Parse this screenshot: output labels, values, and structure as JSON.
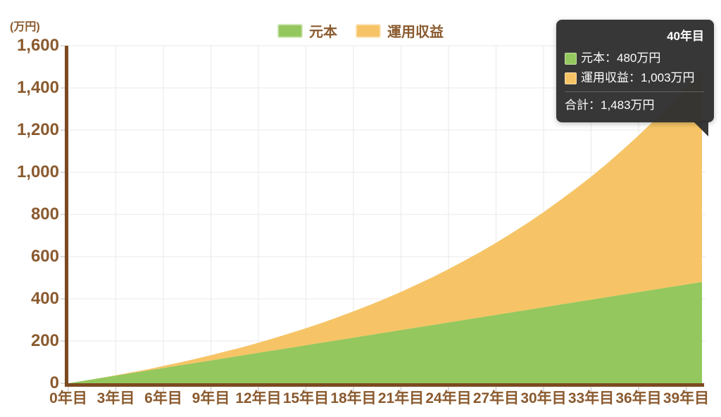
{
  "chart_data": {
    "type": "area",
    "stacked": true,
    "unit": "万円",
    "x_years": [
      0,
      1,
      2,
      3,
      4,
      5,
      6,
      7,
      8,
      9,
      10,
      11,
      12,
      13,
      14,
      15,
      16,
      17,
      18,
      19,
      20,
      21,
      22,
      23,
      24,
      25,
      26,
      27,
      28,
      29,
      30,
      31,
      32,
      33,
      34,
      35,
      36,
      37,
      38,
      39,
      40
    ],
    "series": [
      {
        "name": "元本",
        "color": "#94c75d",
        "values": [
          0,
          12,
          24,
          36,
          48,
          60,
          72,
          84,
          96,
          108,
          120,
          132,
          144,
          156,
          168,
          180,
          192,
          204,
          216,
          228,
          240,
          252,
          264,
          276,
          288,
          300,
          312,
          324,
          336,
          348,
          360,
          372,
          384,
          396,
          408,
          420,
          432,
          444,
          456,
          468,
          480
        ]
      },
      {
        "name": "運用収益",
        "color": "#f6c466",
        "values": [
          0,
          0,
          1,
          2,
          4,
          6,
          10,
          14,
          19,
          25,
          32,
          39,
          48,
          58,
          69,
          81,
          94,
          109,
          125,
          142,
          161,
          181,
          204,
          227,
          253,
          281,
          310,
          342,
          376,
          412,
          451,
          493,
          537,
          583,
          633,
          687,
          743,
          803,
          866,
          934,
          1003
        ]
      }
    ],
    "x_tick_years": [
      0,
      3,
      6,
      9,
      12,
      15,
      18,
      21,
      24,
      27,
      30,
      33,
      36,
      39
    ],
    "x_tick_labels": [
      "0年目",
      "3年目",
      "6年目",
      "9年目",
      "12年目",
      "15年目",
      "18年目",
      "21年目",
      "24年目",
      "27年目",
      "30年目",
      "33年目",
      "36年目",
      "39年目"
    ],
    "y_tick_values": [
      0,
      200,
      400,
      600,
      800,
      1000,
      1200,
      1400,
      1600
    ],
    "y_tick_labels": [
      "0",
      "200",
      "400",
      "600",
      "800",
      "1,000",
      "1,200",
      "1,400",
      "1,600"
    ],
    "xlim": [
      0,
      40
    ],
    "ylim": [
      0,
      1600
    ],
    "grid": true,
    "legend_position": "top-center",
    "highlighted_point": {
      "year": 40,
      "元本": 480,
      "運用収益": 1003,
      "合計": 1483
    }
  },
  "chart": {
    "unit_label": "(万円)",
    "legend": [
      {
        "label": "元本",
        "color": "#94c75d"
      },
      {
        "label": "運用収益",
        "color": "#f6c466"
      }
    ],
    "tooltip": {
      "title": "40年目",
      "rows": [
        {
          "text": "元本：480万円",
          "color": "#94c75d"
        },
        {
          "text": "運用収益：1,003万円",
          "color": "#f6c466"
        }
      ],
      "total": {
        "text": "合計：1,483万円"
      }
    },
    "colors": {
      "axis": "#7c4a21",
      "label_text": "#8a5a2e",
      "gridline": "#e9e9e9",
      "tick": "#d0d0d0",
      "tooltip_bg": "#2f2f2f"
    }
  }
}
